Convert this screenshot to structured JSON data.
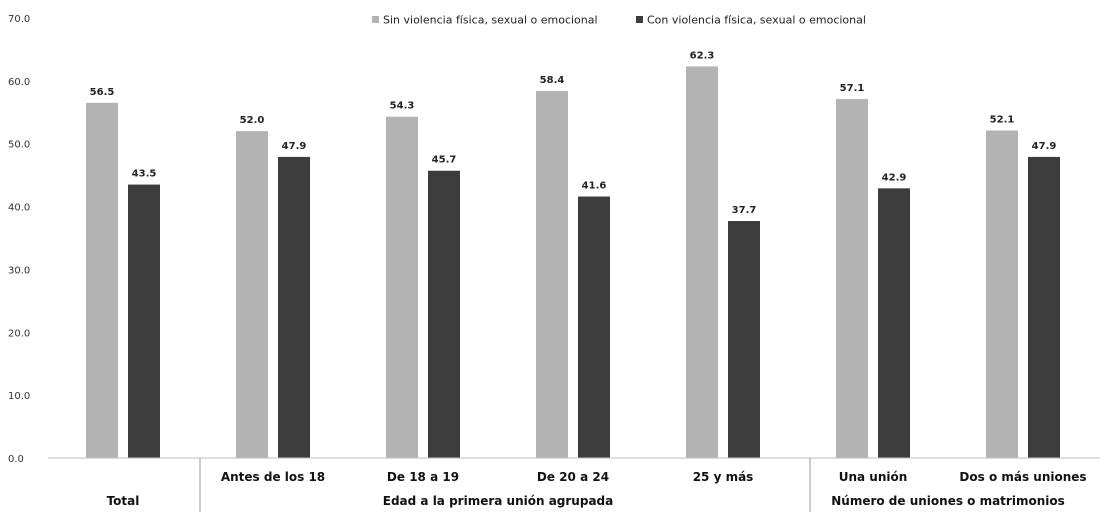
{
  "chart_data": {
    "type": "bar",
    "title": "",
    "xlabel": "",
    "ylabel": "",
    "ylim": [
      0,
      70
    ],
    "yticks": [
      "0.0",
      "10.0",
      "20.0",
      "30.0",
      "40.0",
      "50.0",
      "60.0",
      "70.0"
    ],
    "categories": [
      "Total",
      "Antes de los 18",
      "De 18 a 19",
      "De 20 a 24",
      "25 y más",
      "Una unión",
      "Dos o más uniones"
    ],
    "series": [
      {
        "name": "Sin violencia física, sexual o emocional",
        "color": "#b3b3b3",
        "values": [
          56.5,
          52.0,
          54.3,
          58.4,
          62.3,
          57.1,
          52.1
        ]
      },
      {
        "name": "Con violencia física, sexual o emocional",
        "color": "#3c3c3c",
        "values": [
          43.5,
          47.9,
          45.7,
          41.6,
          37.7,
          42.9,
          47.9
        ]
      }
    ],
    "groups": [
      {
        "label": "Total",
        "categories": [
          0
        ]
      },
      {
        "label": "Edad a la primera unión agrupada",
        "categories": [
          1,
          2,
          3,
          4
        ]
      },
      {
        "label": "Número de uniones o matrimonios",
        "categories": [
          5,
          6
        ]
      }
    ],
    "legend_position": "top",
    "grid": false
  }
}
